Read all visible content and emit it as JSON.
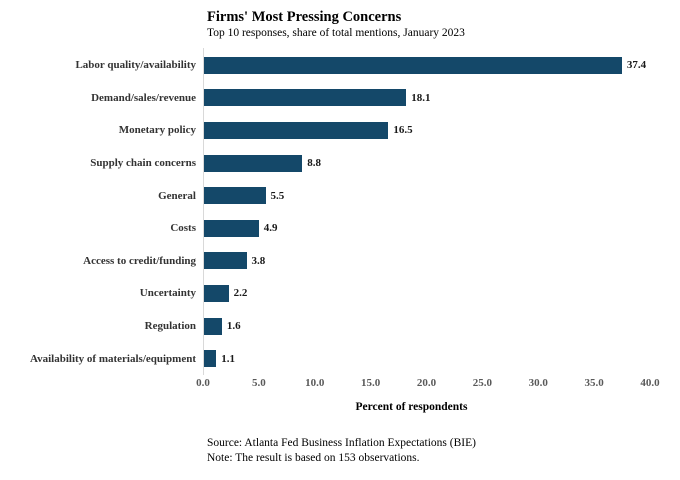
{
  "chart_data": {
    "type": "bar",
    "orientation": "horizontal",
    "title": "Firms' Most Pressing Concerns",
    "subtitle": "Top 10 responses, share of total mentions, January 2023",
    "categories": [
      "Labor quality/availability",
      "Demand/sales/revenue",
      "Monetary policy",
      "Supply chain concerns",
      "General",
      "Costs",
      "Access to credit/funding",
      "Uncertainty",
      "Regulation",
      "Availability of materials/equipment"
    ],
    "values": [
      37.4,
      18.1,
      16.5,
      8.8,
      5.5,
      4.9,
      3.8,
      2.2,
      1.6,
      1.1
    ],
    "value_labels": [
      "37.4",
      "18.1",
      "16.5",
      "8.8",
      "5.5",
      "4.9",
      "3.8",
      "2.2",
      "1.6",
      "1.1"
    ],
    "xlabel": "Percent of respondents",
    "xlim": [
      0,
      40
    ],
    "xtick_step": 5,
    "xticks": [
      "0.0",
      "5.0",
      "10.0",
      "15.0",
      "20.0",
      "25.0",
      "30.0",
      "35.0",
      "40.0"
    ],
    "bar_color": "#144869",
    "axis_line_color": "#d9d9d9",
    "grid": false,
    "legend": false
  },
  "footer": {
    "source": "Source: Atlanta Fed Business Inflation Expectations (BIE)",
    "note": "Note: The result is based on 153 observations."
  }
}
